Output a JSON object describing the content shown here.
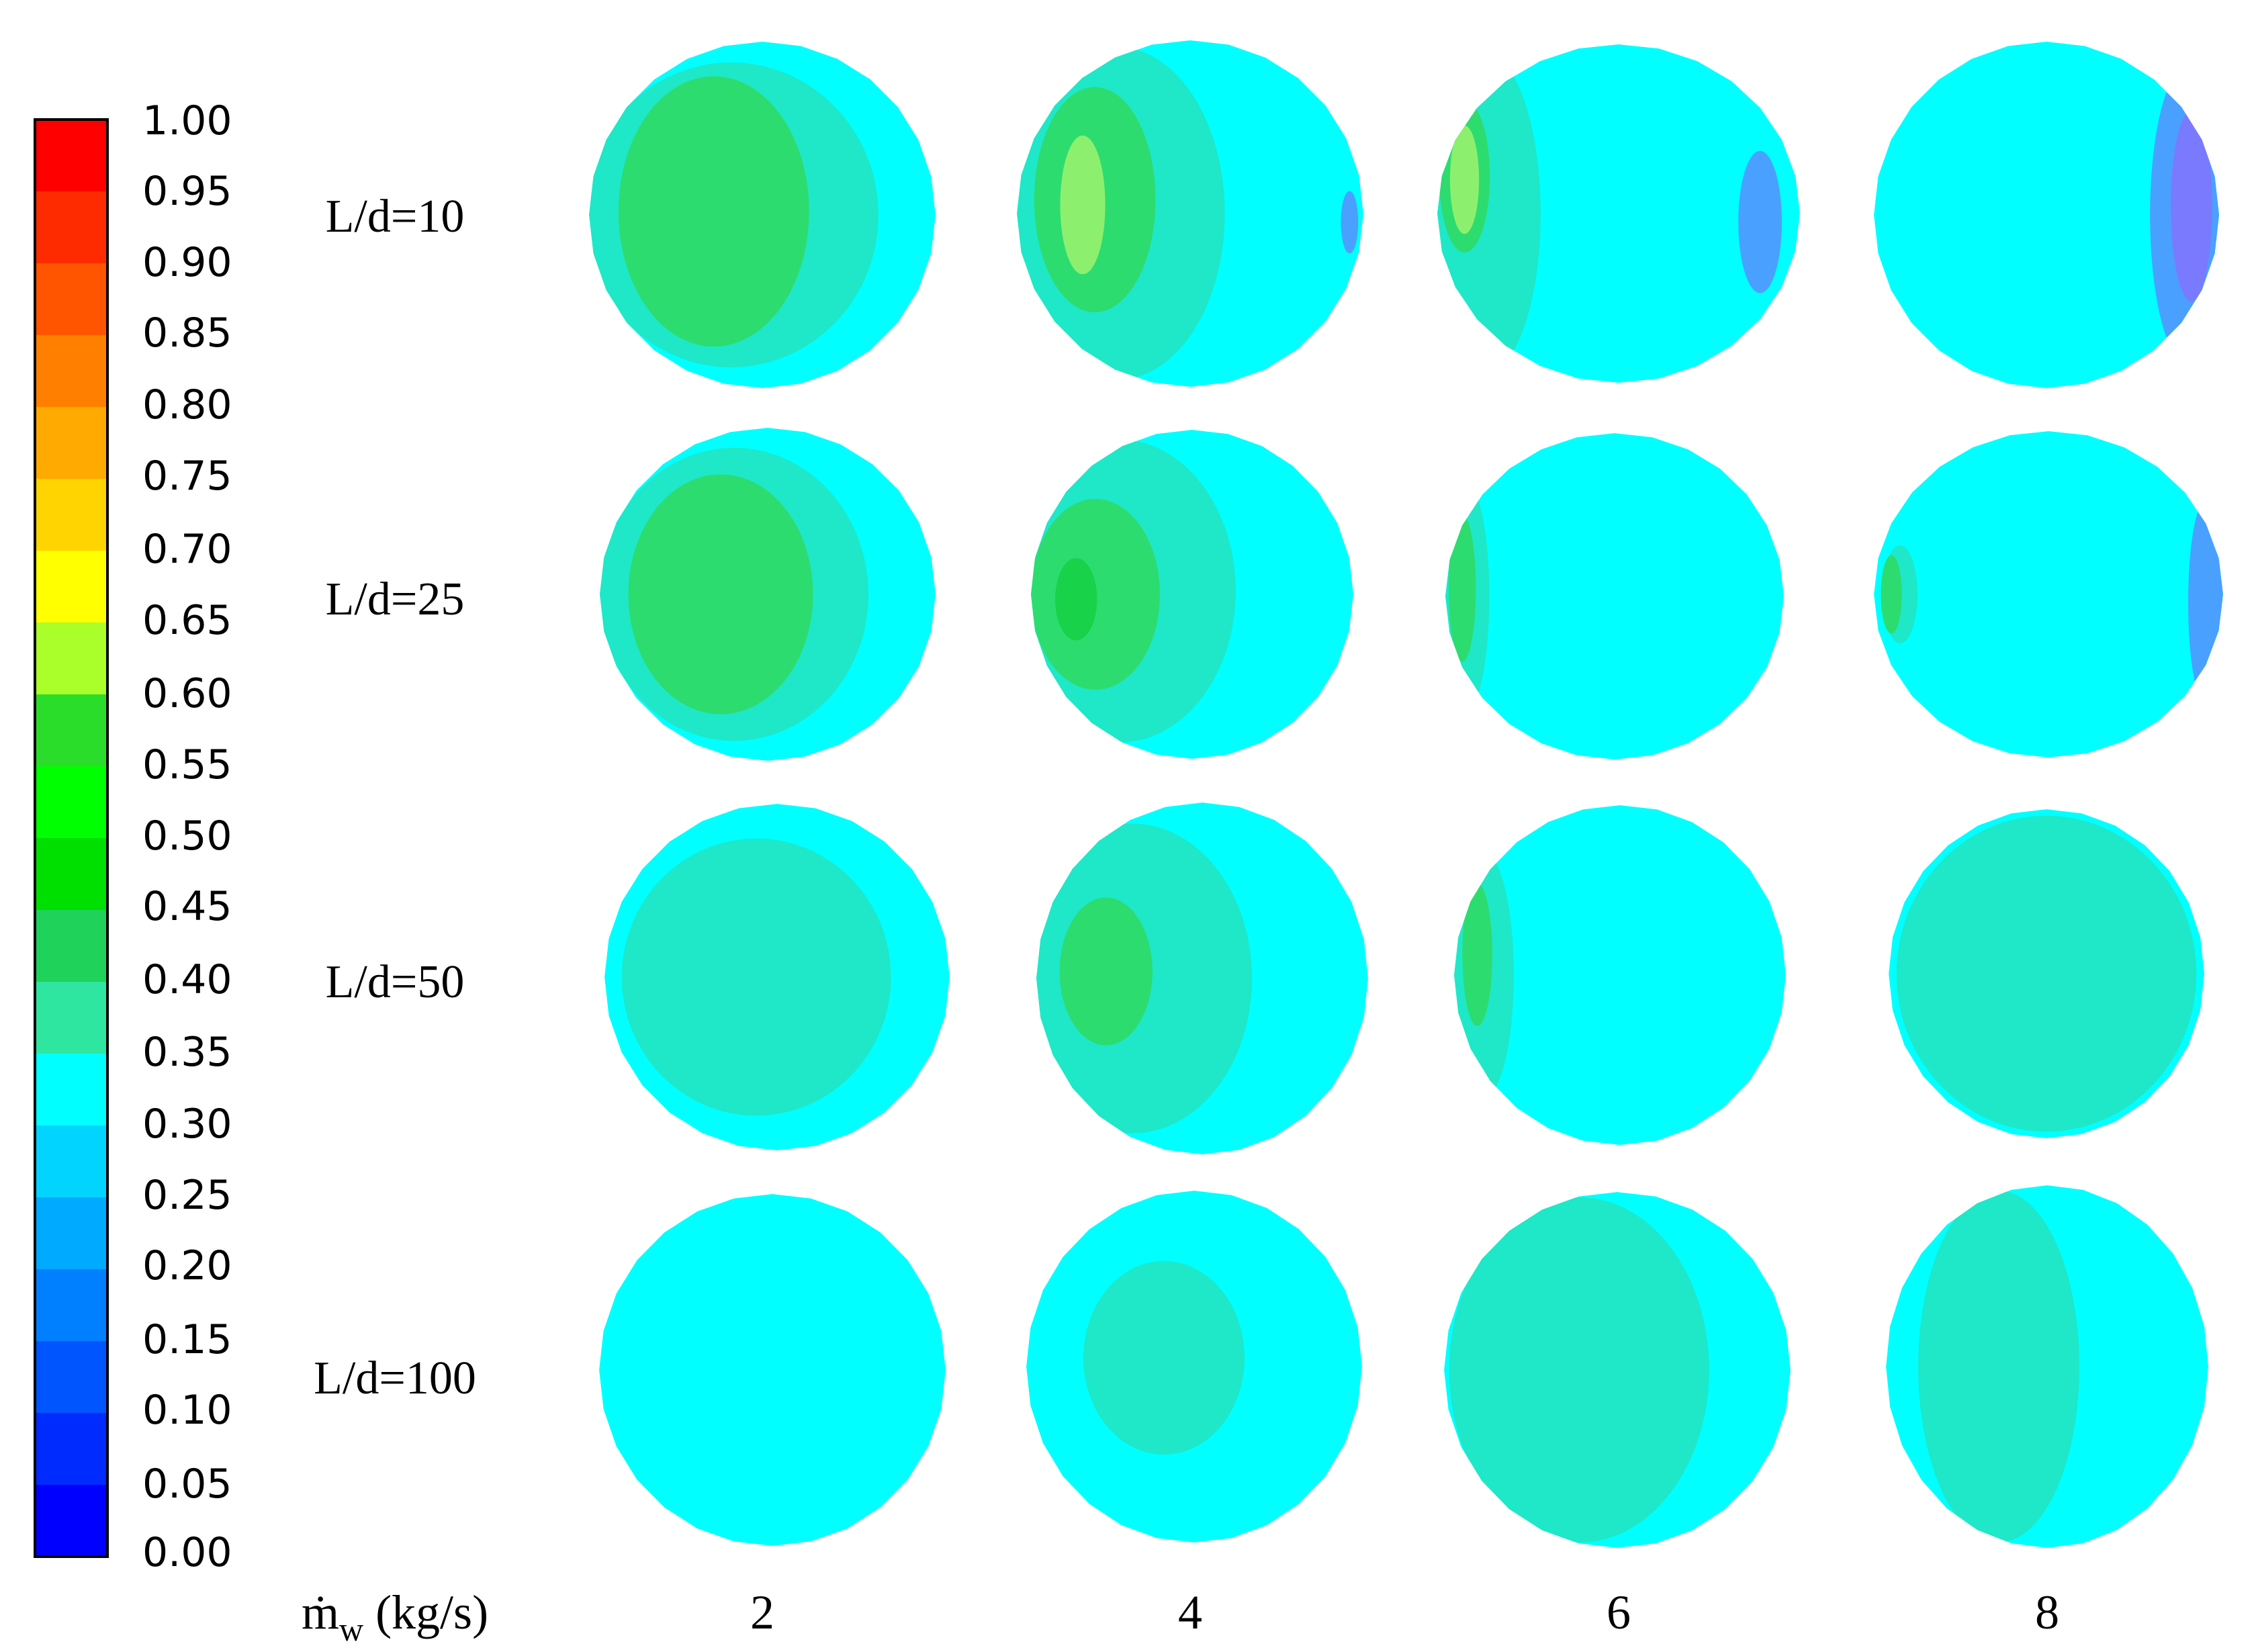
{
  "colorbar": {
    "ticks": [
      "1.00",
      "0.95",
      "0.90",
      "0.85",
      "0.80",
      "0.75",
      "0.70",
      "0.65",
      "0.60",
      "0.55",
      "0.50",
      "0.45",
      "0.40",
      "0.35",
      "0.30",
      "0.25",
      "0.20",
      "0.15",
      "0.10",
      "0.05",
      "0.00"
    ],
    "band_colors_top_to_bottom": [
      "#ff0000",
      "#ff2b00",
      "#ff5500",
      "#ff8000",
      "#ffaa00",
      "#ffd400",
      "#ffff00",
      "#aaff2b",
      "#2bdd2b",
      "#00ff00",
      "#00e000",
      "#1ed25a",
      "#2ee6a0",
      "#00ffff",
      "#00d4ff",
      "#00aaff",
      "#0080ff",
      "#0055ff",
      "#002bff",
      "#0000ff"
    ]
  },
  "rows": [
    {
      "label": "L/d=10"
    },
    {
      "label": "L/d=25"
    },
    {
      "label": "L/d=50"
    },
    {
      "label": "L/d=100"
    }
  ],
  "x_axis": {
    "label_main": "ṁ",
    "label_sub": "w",
    "label_unit": " (kg/s)",
    "values": [
      "2",
      "4",
      "6",
      "8"
    ]
  },
  "colors": {
    "base": "#00ffff",
    "teal": "#1ee8c8",
    "green": "#2ddc6e",
    "bright_green": "#18d24a",
    "light_green": "#8cf06e",
    "blue": "#4aa0ff",
    "violet": "#7a7aff"
  },
  "cells": [
    {
      "row": 0,
      "col": 0,
      "zones": [
        {
          "kind": "teal"
        },
        {
          "kind": "green"
        }
      ]
    },
    {
      "row": 0,
      "col": 1,
      "zones": [
        {
          "kind": "teal"
        },
        {
          "kind": "green"
        },
        {
          "kind": "light_green"
        },
        {
          "kind": "blue"
        }
      ]
    },
    {
      "row": 0,
      "col": 2,
      "zones": [
        {
          "kind": "teal"
        },
        {
          "kind": "green"
        },
        {
          "kind": "light_green"
        },
        {
          "kind": "blue"
        }
      ]
    },
    {
      "row": 0,
      "col": 3,
      "zones": [
        {
          "kind": "blue"
        },
        {
          "kind": "violet"
        }
      ]
    },
    {
      "row": 1,
      "col": 0,
      "zones": [
        {
          "kind": "teal"
        },
        {
          "kind": "green"
        }
      ]
    },
    {
      "row": 1,
      "col": 1,
      "zones": [
        {
          "kind": "teal"
        },
        {
          "kind": "green"
        },
        {
          "kind": "bright_green"
        }
      ]
    },
    {
      "row": 1,
      "col": 2,
      "zones": [
        {
          "kind": "teal"
        },
        {
          "kind": "green"
        }
      ]
    },
    {
      "row": 1,
      "col": 3,
      "zones": [
        {
          "kind": "teal"
        },
        {
          "kind": "green"
        },
        {
          "kind": "blue"
        }
      ]
    },
    {
      "row": 2,
      "col": 0,
      "zones": [
        {
          "kind": "teal"
        }
      ]
    },
    {
      "row": 2,
      "col": 1,
      "zones": [
        {
          "kind": "teal"
        },
        {
          "kind": "green"
        }
      ]
    },
    {
      "row": 2,
      "col": 2,
      "zones": [
        {
          "kind": "teal"
        },
        {
          "kind": "green"
        }
      ]
    },
    {
      "row": 2,
      "col": 3,
      "zones": [
        {
          "kind": "teal"
        }
      ]
    },
    {
      "row": 3,
      "col": 0,
      "zones": []
    },
    {
      "row": 3,
      "col": 1,
      "zones": [
        {
          "kind": "teal"
        }
      ]
    },
    {
      "row": 3,
      "col": 2,
      "zones": [
        {
          "kind": "teal"
        }
      ]
    },
    {
      "row": 3,
      "col": 3,
      "zones": [
        {
          "kind": "teal"
        }
      ]
    }
  ]
}
